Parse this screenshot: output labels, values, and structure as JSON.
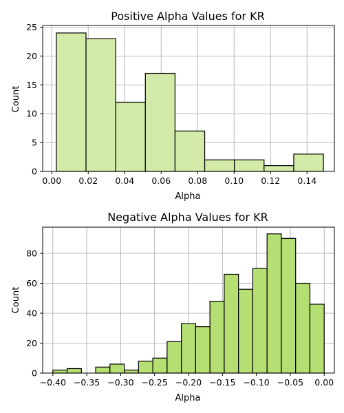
{
  "chart_data": [
    {
      "type": "histogram",
      "title": "Positive Alpha Values for KR",
      "xlabel": "Alpha",
      "ylabel": "Count",
      "xlim": [
        -0.005,
        0.155
      ],
      "ylim": [
        0,
        25.3
      ],
      "xticks": [
        0.0,
        0.02,
        0.04,
        0.06,
        0.08,
        0.1,
        0.12,
        0.14
      ],
      "xtick_labels": [
        "0.00",
        "0.02",
        "0.04",
        "0.06",
        "0.08",
        "0.10",
        "0.12",
        "0.14"
      ],
      "yticks": [
        0,
        5,
        10,
        15,
        20,
        25
      ],
      "ytick_labels": [
        "0",
        "5",
        "10",
        "15",
        "20",
        "25"
      ],
      "bin_edges": [
        0.0025,
        0.0185,
        0.0345,
        0.0505,
        0.0665,
        0.0825,
        0.0985,
        0.1145,
        0.1305,
        0.1465
      ],
      "bin_edges_note_end": 0.149,
      "counts": [
        24,
        23,
        12,
        17,
        7,
        2,
        2,
        1,
        3
      ],
      "grid": true,
      "color": "#d3eaa8"
    },
    {
      "type": "histogram",
      "title": "Negative Alpha Values for KR",
      "xlabel": "Alpha",
      "ylabel": "Count",
      "xlim": [
        -0.415,
        0.015
      ],
      "ylim": [
        0,
        97.5
      ],
      "xticks": [
        -0.4,
        -0.35,
        -0.3,
        -0.25,
        -0.2,
        -0.15,
        -0.1,
        -0.05,
        0.0
      ],
      "xtick_labels": [
        "−0.40",
        "−0.35",
        "−0.30",
        "−0.25",
        "−0.20",
        "−0.15",
        "−0.10",
        "−0.05",
        "0.00"
      ],
      "yticks": [
        0,
        20,
        40,
        60,
        80
      ],
      "ytick_labels": [
        "0",
        "20",
        "40",
        "60",
        "80"
      ],
      "bin_start": -0.4,
      "bin_width": 0.02,
      "counts": [
        2,
        3,
        0,
        4,
        6,
        2,
        8,
        10,
        21,
        33,
        31,
        48,
        66,
        56,
        70,
        93,
        90,
        60,
        46
      ],
      "grid": true,
      "color": "#b5de73"
    }
  ]
}
